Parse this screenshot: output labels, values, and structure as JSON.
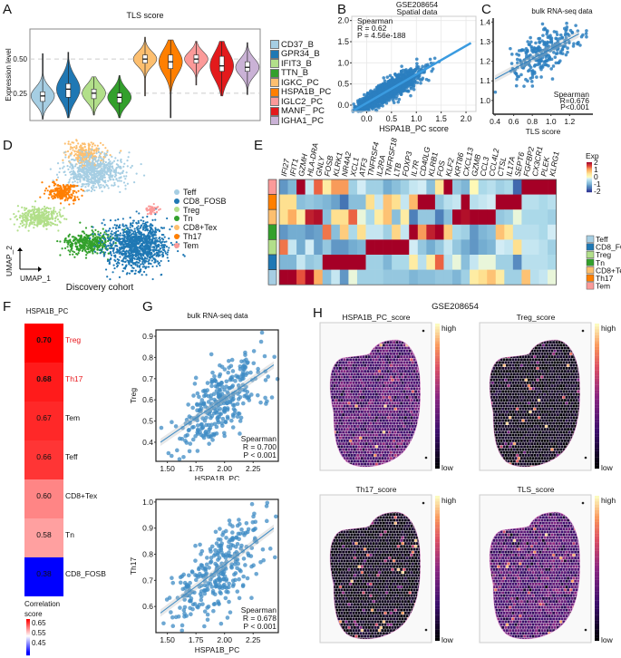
{
  "figure": {
    "panel_letters": [
      "A",
      "B",
      "C",
      "D",
      "E",
      "F",
      "G",
      "H"
    ]
  },
  "chart_data": [
    {
      "id": "A",
      "type": "violin",
      "title": "TLS score",
      "xlabel": "",
      "ylabel": "Expression level",
      "yticks": [
        "0.25",
        "0.50"
      ],
      "ylim": [
        0.05,
        0.72
      ],
      "grid": "dashed at 0.25 and 0.50",
      "legend_position": "right",
      "series": [
        {
          "name": "CD37_B",
          "color": "#a6cee3",
          "median": 0.23,
          "q1": 0.19,
          "q3": 0.26,
          "min": 0.06,
          "max": 0.54,
          "mode": 0.23
        },
        {
          "name": "GPR34_B",
          "color": "#1f78b4",
          "median": 0.28,
          "q1": 0.22,
          "q3": 0.32,
          "min": 0.07,
          "max": 0.55,
          "mode": 0.28
        },
        {
          "name": "IFIT3_B",
          "color": "#b2df8a",
          "median": 0.25,
          "q1": 0.21,
          "q3": 0.28,
          "min": 0.09,
          "max": 0.37,
          "mode": 0.25
        },
        {
          "name": "TTN_B",
          "color": "#33a02c",
          "median": 0.22,
          "q1": 0.18,
          "q3": 0.25,
          "min": 0.07,
          "max": 0.38,
          "mode": 0.22
        },
        {
          "name": "IGKC_PC",
          "color": "#fdbf6f",
          "median": 0.5,
          "q1": 0.47,
          "q3": 0.53,
          "min": 0.23,
          "max": 0.66,
          "mode": 0.5
        },
        {
          "name": "HSPA1B_PC",
          "color": "#ff7f00",
          "median": 0.48,
          "q1": 0.43,
          "q3": 0.53,
          "min": 0.07,
          "max": 0.64,
          "mode": 0.48
        },
        {
          "name": "IGLC2_PC",
          "color": "#fb9a99",
          "median": 0.5,
          "q1": 0.47,
          "q3": 0.53,
          "min": 0.31,
          "max": 0.63,
          "mode": 0.5
        },
        {
          "name": "MANF_ PC",
          "color": "#e31a1c",
          "median": 0.45,
          "q1": 0.41,
          "q3": 0.52,
          "min": 0.23,
          "max": 0.63,
          "mode": 0.45
        },
        {
          "name": "IGHA1_PC",
          "color": "#cab2d6",
          "median": 0.44,
          "q1": 0.41,
          "q3": 0.48,
          "min": 0.24,
          "max": 0.62,
          "mode": 0.44
        }
      ]
    },
    {
      "id": "B",
      "type": "scatter",
      "title": "GSE208654\nSpatial data",
      "title_lines": [
        "GSE208654",
        "Spatial data"
      ],
      "xlabel": "HSPA1B_PC score",
      "ylabel": "TLS_score",
      "xticks": [
        "0.0",
        "0.5",
        "1.0",
        "1.5",
        "2.0"
      ],
      "yticks": [
        "0.0",
        "0.5",
        "1.0",
        "1.5",
        "2.0"
      ],
      "xlim": [
        -0.3,
        2.2
      ],
      "ylim": [
        -0.15,
        2.1
      ],
      "grid": true,
      "annotation": [
        "Spearman",
        "R = 0.62",
        "P = 4.56e-188"
      ],
      "fit_line": {
        "x": [
          -0.25,
          2.1
        ],
        "y": [
          -0.12,
          1.47
        ]
      },
      "color": "#2c7fbf",
      "n_points_approx": 3000
    },
    {
      "id": "C",
      "type": "scatter",
      "title": "bulk RNA-seq data",
      "xlabel": "TLS score",
      "ylabel": "HSPA1B_PC score",
      "xticks": [
        "0.4",
        "0.6",
        "0.8",
        "1.0",
        "1.2"
      ],
      "yticks": [
        "1.0",
        "1.1",
        "1.2",
        "1.3",
        "1.4"
      ],
      "xlim": [
        0.38,
        1.45
      ],
      "ylim": [
        0.93,
        1.42
      ],
      "annotation": [
        "Spearman",
        "R=0.676",
        "P<0.001"
      ],
      "fit_line": {
        "x": [
          0.4,
          1.3
        ],
        "y": [
          1.11,
          1.34
        ]
      },
      "color": "#2c7fbf",
      "n_points_approx": 300
    },
    {
      "id": "D",
      "type": "scatter",
      "title": "Discovery cohort",
      "xlabel": "UMAP_1",
      "ylabel": "UMAP_2",
      "legend_position": "right",
      "series": [
        {
          "name": "Teff",
          "color": "#a6cee3"
        },
        {
          "name": "CD8_FOSB",
          "color": "#1f78b4"
        },
        {
          "name": "Treg",
          "color": "#b2df8a"
        },
        {
          "name": "Tn",
          "color": "#33a02c"
        },
        {
          "name": "CD8+Tex",
          "color": "#fdbf6f"
        },
        {
          "name": "Th17",
          "color": "#ff7f00"
        },
        {
          "name": "Tem",
          "color": "#fb9a99"
        }
      ]
    },
    {
      "id": "E",
      "type": "heatmap",
      "genes": [
        "IFI27",
        "IFIT1",
        "GZMH",
        "HLA-DRA",
        "GNLY",
        "FOSB",
        "KLRK1",
        "NR4A2",
        "XCL1",
        "ATF3",
        "TNFRSF4",
        "IL2RA",
        "TNFRSF18",
        "LTB",
        "FOXP3",
        "IL7R",
        "CD40LG",
        "KLRB1",
        "FOS",
        "KLF2",
        "KRT86",
        "CXCL13",
        "GZMB",
        "CCL3",
        "CCL4L2",
        "CTSL",
        "IL17A",
        "SEPT6",
        "FGFBP2",
        "CX3CR1",
        "PLEK",
        "KLRG1"
      ],
      "rows": [
        "Tem",
        "Th17",
        "CD8+Tex",
        "Tn",
        "Treg",
        "CD8_FOSB",
        "Teff"
      ],
      "row_colors": [
        "#fb9a99",
        "#ff7f00",
        "#fdbf6f",
        "#33a02c",
        "#b2df8a",
        "#1f78b4",
        "#a6cee3"
      ],
      "values": [
        [
          -1.2,
          -0.9,
          2.0,
          -0.3,
          1.4,
          0.3,
          1.1,
          1.1,
          -0.6,
          -0.2,
          -0.6,
          -0.6,
          -1.0,
          -0.8,
          -0.6,
          -0.3,
          -0.2,
          -0.8,
          0.4,
          2.0,
          -0.7,
          -0.9,
          0.1,
          -0.5,
          -0.4,
          -0.6,
          -0.5,
          -1.6,
          2.0,
          2.0,
          2.0,
          2.0
        ],
        [
          0.5,
          0.5,
          -0.8,
          -0.7,
          -0.8,
          -0.9,
          -1.1,
          -1.5,
          -0.8,
          -0.8,
          0.5,
          -0.3,
          0.8,
          0.5,
          -0.3,
          0.9,
          2.0,
          2.0,
          -0.7,
          -0.4,
          -0.3,
          2.0,
          -0.4,
          -0.3,
          -0.2,
          2.0,
          2.0,
          2.0,
          -0.4,
          -0.4,
          -0.5,
          -0.4
        ],
        [
          0.5,
          1.0,
          0.3,
          1.8,
          1.9,
          -0.8,
          0.5,
          0.5,
          1.4,
          -0.1,
          -0.5,
          0.3,
          0.8,
          -0.8,
          0.3,
          -1.4,
          -0.7,
          -0.7,
          -1.4,
          -0.8,
          2.0,
          1.9,
          2.0,
          2.0,
          2.0,
          -0.7,
          -0.6,
          -0.1,
          -0.5,
          -0.5,
          -0.5,
          -0.6
        ],
        [
          -1.2,
          -1.0,
          -1.0,
          -1.2,
          -1.1,
          1.3,
          -0.8,
          0.7,
          -0.5,
          0.5,
          -0.3,
          -0.3,
          -0.6,
          0.6,
          -0.3,
          2.0,
          1.1,
          1.8,
          2.0,
          0.7,
          -0.5,
          -0.6,
          -1.2,
          -0.9,
          -0.8,
          0.8,
          0.4,
          -0.4,
          -0.4,
          -0.4,
          -0.5,
          -0.2
        ],
        [
          1.3,
          -0.3,
          -1.0,
          -0.2,
          -1.1,
          -0.7,
          -1.2,
          -1.2,
          -1.0,
          -0.9,
          2.0,
          2.0,
          2.0,
          2.0,
          2.0,
          -0.2,
          -0.7,
          -1.0,
          -0.7,
          -0.3,
          -0.7,
          -1.0,
          -1.2,
          -1.0,
          -0.9,
          -0.2,
          -0.3,
          0.5,
          -0.3,
          -0.3,
          -0.4,
          -0.6
        ],
        [
          -0.9,
          -0.9,
          -0.3,
          -0.7,
          -0.6,
          2.0,
          2.0,
          2.0,
          2.0,
          2.0,
          -0.6,
          -0.6,
          -0.9,
          -0.5,
          -0.5,
          0.3,
          -0.4,
          0.3,
          1.4,
          -0.4,
          -0.1,
          -0.8,
          -0.3,
          -0.1,
          -0.1,
          -0.6,
          -0.6,
          -1.3,
          -0.4,
          -0.4,
          -0.4,
          -0.5
        ],
        [
          2.0,
          2.0,
          1.5,
          2.0,
          1.0,
          -0.8,
          -0.3,
          -1.2,
          -0.1,
          -0.6,
          -0.6,
          -0.6,
          -0.7,
          -0.7,
          -0.7,
          -0.9,
          -0.8,
          -0.8,
          -0.7,
          -0.7,
          -0.9,
          -0.6,
          0.3,
          0.5,
          0.8,
          0.3,
          -0.6,
          -0.6,
          0.8,
          -0.4,
          -0.3,
          -0.1
        ]
      ],
      "colorbar": {
        "title": "Exp",
        "ticks": [
          "2",
          "1",
          "0",
          "-1",
          "-2"
        ],
        "range": [
          -2,
          2
        ]
      },
      "legend": [
        "Teff",
        "CD8_FOSB",
        "Treg",
        "Tn",
        "CD8+Tex",
        "Th17",
        "Tem"
      ],
      "legend_colors": [
        "#a6cee3",
        "#1f78b4",
        "#b2df8a",
        "#33a02c",
        "#fdbf6f",
        "#ff7f00",
        "#fb9a99"
      ]
    },
    {
      "id": "F",
      "type": "heatmap",
      "title": "HSPA1B_PC",
      "cells": [
        {
          "label": "Treg",
          "value": 0.7,
          "bold": true,
          "highlight": true
        },
        {
          "label": "Th17",
          "value": 0.68,
          "bold": true,
          "highlight": true
        },
        {
          "label": "Tem",
          "value": 0.67,
          "bold": false,
          "highlight": false
        },
        {
          "label": "Teff",
          "value": 0.66,
          "bold": false,
          "highlight": false
        },
        {
          "label": "CD8+Tex",
          "value": 0.6,
          "bold": false,
          "highlight": false
        },
        {
          "label": "Tn",
          "value": 0.58,
          "bold": false,
          "highlight": false
        },
        {
          "label": "CD8_FOSB",
          "value": 0.38,
          "bold": false,
          "highlight": false
        }
      ],
      "colorbar": {
        "title": "Correlation score",
        "ticks": [
          "0.65",
          "0.55",
          "0.45"
        ],
        "range": [
          0.4,
          0.7
        ]
      }
    },
    {
      "id": "G1",
      "type": "scatter",
      "title": "bulk RNA-seq data",
      "xlabel": "HSPA1B_PC",
      "ylabel": "Treg",
      "xticks": [
        "1.50",
        "1.75",
        "2.00",
        "2.25"
      ],
      "yticks": [
        "0.4",
        "0.5",
        "0.6",
        "0.7",
        "0.8",
        "0.9"
      ],
      "xlim": [
        1.4,
        2.47
      ],
      "ylim": [
        0.31,
        0.93
      ],
      "annotation": [
        "Spearman",
        "R = 0.700",
        "P < 0.001"
      ],
      "fit_line": {
        "x": [
          1.44,
          2.43
        ],
        "y": [
          0.4,
          0.765
        ]
      },
      "color": "#3d8bc4",
      "n_points_approx": 300
    },
    {
      "id": "G2",
      "type": "scatter",
      "title": "",
      "xlabel": "HSPA1B_PC",
      "ylabel": "Th17",
      "xticks": [
        "1.50",
        "1.75",
        "2.00",
        "2.25"
      ],
      "yticks": [
        "0.6",
        "0.7",
        "0.8",
        "0.9",
        "1.0"
      ],
      "xlim": [
        1.4,
        2.47
      ],
      "ylim": [
        0.5,
        1.01
      ],
      "annotation": [
        "Spearman",
        "R = 0.678",
        "P < 0.001"
      ],
      "fit_line": {
        "x": [
          1.44,
          2.43
        ],
        "y": [
          0.575,
          0.9
        ]
      },
      "color": "#3d8bc4",
      "n_points_approx": 300
    },
    {
      "id": "H",
      "type": "heatmap",
      "title": "GSE208654",
      "maps": [
        {
          "title": "HSPA1B_PC_score",
          "level": "mid"
        },
        {
          "title": "Treg_score",
          "level": "low"
        },
        {
          "title": "Th17_score",
          "level": "low"
        },
        {
          "title": "TLS_score",
          "level": "mid"
        }
      ],
      "colorbar": {
        "high": "high",
        "low": "low"
      }
    }
  ]
}
